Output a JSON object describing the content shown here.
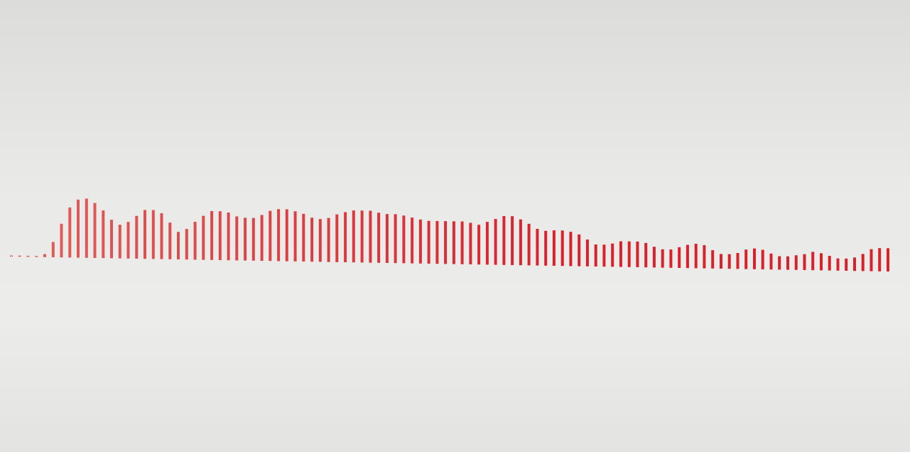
{
  "colors": {
    "background": "#e7e7e5",
    "bar_light": "#e0605c",
    "bar_dark": "#d9202b"
  },
  "waveform": {
    "max_level": 1.0,
    "levels": [
      0.0,
      0.0,
      0.0,
      0.0,
      0.05,
      0.25,
      0.55,
      0.82,
      0.95,
      0.97,
      0.9,
      0.78,
      0.63,
      0.55,
      0.6,
      0.7,
      0.8,
      0.8,
      0.75,
      0.6,
      0.45,
      0.5,
      0.62,
      0.72,
      0.8,
      0.8,
      0.78,
      0.72,
      0.7,
      0.7,
      0.75,
      0.82,
      0.85,
      0.85,
      0.82,
      0.78,
      0.72,
      0.7,
      0.72,
      0.78,
      0.82,
      0.85,
      0.85,
      0.85,
      0.82,
      0.8,
      0.8,
      0.78,
      0.75,
      0.72,
      0.7,
      0.7,
      0.7,
      0.7,
      0.7,
      0.68,
      0.65,
      0.7,
      0.75,
      0.8,
      0.8,
      0.75,
      0.68,
      0.6,
      0.57,
      0.58,
      0.58,
      0.56,
      0.52,
      0.44,
      0.36,
      0.36,
      0.38,
      0.42,
      0.42,
      0.42,
      0.4,
      0.34,
      0.3,
      0.3,
      0.34,
      0.38,
      0.4,
      0.38,
      0.3,
      0.24,
      0.24,
      0.26,
      0.32,
      0.34,
      0.32,
      0.26,
      0.22,
      0.22,
      0.24,
      0.26,
      0.3,
      0.28,
      0.24,
      0.2,
      0.2,
      0.22,
      0.28,
      0.36,
      0.38,
      0.38
    ]
  }
}
